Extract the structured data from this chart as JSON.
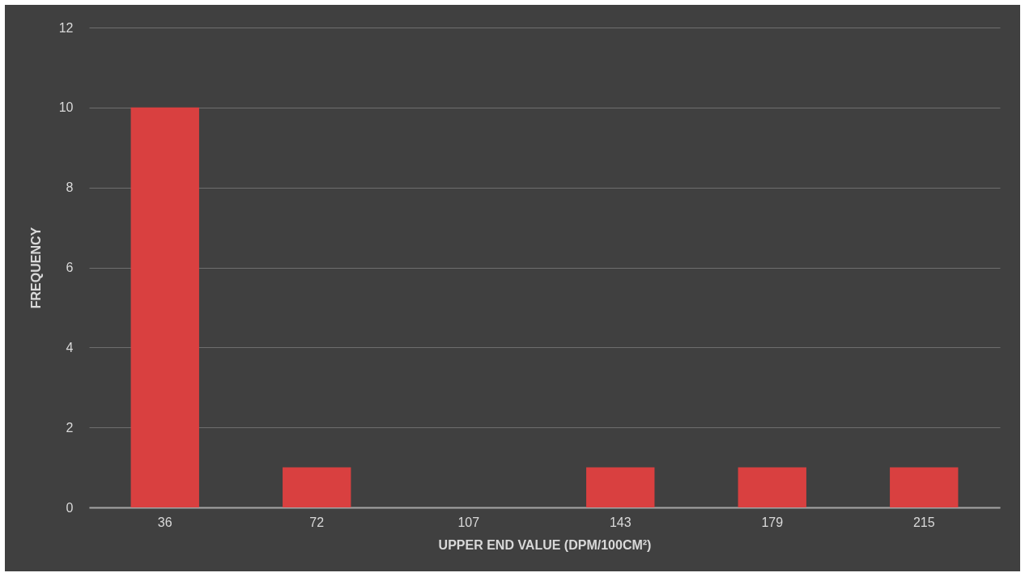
{
  "chart_data": {
    "type": "bar",
    "xlabel": "UPPER END VALUE (DPM/100CM²)",
    "ylabel": "FREQUENCY",
    "categories": [
      "36",
      "72",
      "107",
      "143",
      "179",
      "215"
    ],
    "values": [
      10,
      1,
      0,
      1,
      1,
      1
    ],
    "color": "#d94040",
    "ylim": [
      0,
      12
    ],
    "yticks": [
      0,
      2,
      4,
      6,
      8,
      10,
      12
    ],
    "grid": "y"
  }
}
